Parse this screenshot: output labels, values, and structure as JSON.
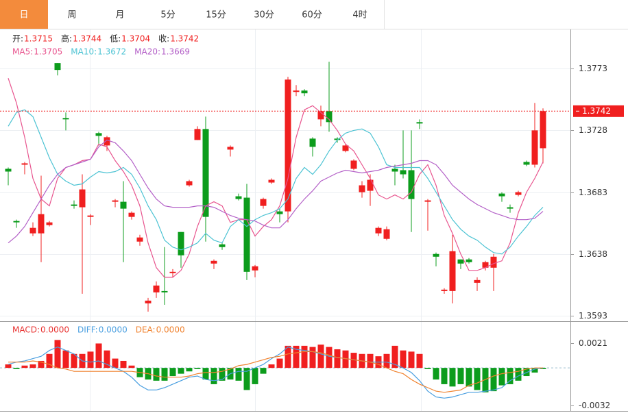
{
  "tabs": {
    "labels": [
      "日",
      "周",
      "月",
      "5分",
      "15分",
      "30分",
      "60分",
      "4时"
    ],
    "active": 0
  },
  "chart_data": [
    {
      "type": "candlestick",
      "up_color": "#f01f1f",
      "down_color": "#0c9c1c",
      "legend_value_color": "#f01f1f",
      "grid": true,
      "price_line": true,
      "ylim": [
        1.3591,
        1.3802
      ],
      "yticks": [
        1.3773,
        1.3728,
        1.3683,
        1.3638,
        1.3593
      ],
      "ohlc_legend": [
        {
          "label": "开:",
          "value": 1.3715
        },
        {
          "label": "高:",
          "value": 1.3744
        },
        {
          "label": "低:",
          "value": 1.3704
        },
        {
          "label": "收:",
          "value": 1.3742
        }
      ],
      "open": [
        1.37,
        1.3662,
        1.3703,
        1.3653,
        1.3653,
        1.3659,
        1.3777,
        1.3737,
        1.3674,
        1.3672,
        1.3665,
        1.3726,
        1.3717,
        1.3676,
        1.3676,
        1.3665,
        1.3647,
        1.3602,
        1.361,
        1.3611,
        1.3624,
        1.3654,
        1.3688,
        1.3721,
        1.3729,
        1.3631,
        1.3645,
        1.3714,
        1.368,
        1.3679,
        1.3626,
        1.3673,
        1.369,
        1.3669,
        1.3669,
        1.3756,
        1.3757,
        1.3722,
        1.3736,
        1.3742,
        1.3722,
        1.3713,
        1.37,
        1.3683,
        1.3684,
        1.3653,
        1.3649,
        1.37,
        1.3699,
        1.3699,
        1.3734,
        1.3676,
        1.3638,
        1.3611,
        1.3611,
        1.3634,
        1.3634,
        1.3617,
        1.3628,
        1.3628,
        1.3682,
        1.3672,
        1.3681,
        1.3705,
        1.3703,
        1.3715
      ],
      "high": [
        1.3701,
        1.3663,
        1.3705,
        1.3661,
        1.3695,
        1.3662,
        1.3777,
        1.3741,
        1.3677,
        1.3696,
        1.3667,
        1.3727,
        1.3724,
        1.3678,
        1.3691,
        1.3669,
        1.3652,
        1.3606,
        1.3618,
        1.3643,
        1.3627,
        1.3654,
        1.3692,
        1.3731,
        1.3738,
        1.3634,
        1.3646,
        1.3717,
        1.3682,
        1.3689,
        1.363,
        1.3679,
        1.3693,
        1.3671,
        1.3767,
        1.3761,
        1.3758,
        1.3723,
        1.3746,
        1.3778,
        1.3723,
        1.3718,
        1.3707,
        1.3691,
        1.3696,
        1.3658,
        1.3658,
        1.3703,
        1.3728,
        1.3728,
        1.3736,
        1.3678,
        1.3639,
        1.3613,
        1.3652,
        1.3634,
        1.3635,
        1.3621,
        1.3633,
        1.3638,
        1.3683,
        1.3674,
        1.3684,
        1.3706,
        1.3748,
        1.3744
      ],
      "low": [
        1.3688,
        1.3657,
        1.3696,
        1.3651,
        1.3632,
        1.3658,
        1.3768,
        1.3728,
        1.3671,
        1.3609,
        1.3659,
        1.3717,
        1.3713,
        1.3672,
        1.3632,
        1.3663,
        1.3644,
        1.3596,
        1.3606,
        1.3601,
        1.3621,
        1.3628,
        1.3687,
        1.3721,
        1.3647,
        1.3627,
        1.3641,
        1.3709,
        1.3677,
        1.3619,
        1.3621,
        1.3671,
        1.3689,
        1.3661,
        1.3661,
        1.3753,
        1.3753,
        1.3709,
        1.3731,
        1.3727,
        1.3719,
        1.3712,
        1.3699,
        1.3679,
        1.3673,
        1.3651,
        1.3648,
        1.3688,
        1.3693,
        1.3654,
        1.3729,
        1.3655,
        1.3629,
        1.3609,
        1.3602,
        1.3627,
        1.3631,
        1.3611,
        1.3626,
        1.3611,
        1.3676,
        1.3668,
        1.368,
        1.3702,
        1.3701,
        1.3704
      ],
      "close": [
        1.3698,
        1.3661,
        1.3704,
        1.3657,
        1.3667,
        1.3661,
        1.3772,
        1.3736,
        1.3673,
        1.3685,
        1.3666,
        1.3724,
        1.3723,
        1.3677,
        1.3671,
        1.3668,
        1.365,
        1.3604,
        1.3615,
        1.361,
        1.3625,
        1.3637,
        1.3691,
        1.3729,
        1.3665,
        1.3633,
        1.3643,
        1.3716,
        1.3678,
        1.3625,
        1.3629,
        1.3678,
        1.3692,
        1.3667,
        1.3765,
        1.3757,
        1.3755,
        1.3716,
        1.3742,
        1.3734,
        1.3721,
        1.3717,
        1.3706,
        1.3688,
        1.3692,
        1.3657,
        1.3656,
        1.3698,
        1.3696,
        1.3678,
        1.3733,
        1.3677,
        1.3636,
        1.3612,
        1.364,
        1.3631,
        1.3632,
        1.3619,
        1.3632,
        1.3636,
        1.368,
        1.3671,
        1.3683,
        1.3703,
        1.3728,
        1.3742
      ],
      "series": [
        {
          "name": "MA5:",
          "current": 1.3705,
          "color": "#e8548e",
          "values": [
            1.3766,
            1.3748,
            1.3723,
            1.3693,
            1.3678,
            1.3673,
            1.3693,
            1.3701,
            1.3703,
            1.3706,
            1.3707,
            1.3718,
            1.3716,
            1.3706,
            1.3698,
            1.3688,
            1.3673,
            1.3646,
            1.3628,
            1.3621,
            1.3621,
            1.3626,
            1.3638,
            1.3658,
            1.3673,
            1.3676,
            1.3673,
            1.3661,
            1.3663,
            1.3663,
            1.3651,
            1.3658,
            1.3663,
            1.3673,
            1.3693,
            1.3723,
            1.3743,
            1.3746,
            1.3741,
            1.3736,
            1.3728,
            1.3718,
            1.3713,
            1.3703,
            1.3693,
            1.3681,
            1.3678,
            1.3681,
            1.3678,
            1.3683,
            1.3696,
            1.3703,
            1.3688,
            1.3666,
            1.3653,
            1.3638,
            1.3626,
            1.3626,
            1.3628,
            1.3631,
            1.3633,
            1.3646,
            1.3668,
            1.3683,
            1.3693,
            1.3705
          ]
        },
        {
          "name": "MA10:",
          "current": 1.3672,
          "color": "#4cc3d3",
          "values": [
            1.3731,
            1.3741,
            1.3743,
            1.3738,
            1.3723,
            1.3708,
            1.3696,
            1.3691,
            1.3688,
            1.3689,
            1.3694,
            1.3698,
            1.3697,
            1.3698,
            1.3701,
            1.3696,
            1.3686,
            1.3673,
            1.3663,
            1.3648,
            1.3643,
            1.3641,
            1.3643,
            1.3646,
            1.3653,
            1.3648,
            1.3646,
            1.3658,
            1.3663,
            1.3658,
            1.3663,
            1.3666,
            1.3668,
            1.3671,
            1.3678,
            1.3693,
            1.3701,
            1.3696,
            1.3703,
            1.3713,
            1.3721,
            1.3726,
            1.3728,
            1.3729,
            1.3726,
            1.3716,
            1.3703,
            1.3701,
            1.3701,
            1.3701,
            1.3701,
            1.3693,
            1.3683,
            1.3673,
            1.3663,
            1.3656,
            1.3651,
            1.3648,
            1.3643,
            1.3639,
            1.3638,
            1.3643,
            1.3651,
            1.3658,
            1.3666,
            1.3672
          ]
        },
        {
          "name": "MA20:",
          "current": 1.3669,
          "color": "#b35fc7",
          "values": [
            1.3646,
            1.3651,
            1.3658,
            1.3668,
            1.3678,
            1.3688,
            1.3696,
            1.3701,
            1.3703,
            1.3705,
            1.3707,
            1.3716,
            1.3721,
            1.3719,
            1.3713,
            1.3706,
            1.3696,
            1.3686,
            1.3678,
            1.3673,
            1.3672,
            1.3672,
            1.3672,
            1.3673,
            1.3673,
            1.3672,
            1.3669,
            1.3666,
            1.3664,
            1.3663,
            1.3662,
            1.3659,
            1.3657,
            1.3657,
            1.3663,
            1.3671,
            1.3678,
            1.3684,
            1.3691,
            1.3694,
            1.3697,
            1.3699,
            1.3698,
            1.3697,
            1.3698,
            1.3699,
            1.3701,
            1.3702,
            1.3703,
            1.3704,
            1.3706,
            1.3706,
            1.3703,
            1.3696,
            1.3688,
            1.3683,
            1.3678,
            1.3674,
            1.3671,
            1.3668,
            1.3666,
            1.3664,
            1.3663,
            1.3663,
            1.3664,
            1.3669
          ]
        }
      ]
    },
    {
      "type": "bar",
      "up_color": "#f01f1f",
      "down_color": "#0c9c1c",
      "grid": false,
      "ylim": [
        -0.0037,
        0.0036
      ],
      "yticks": [
        0.0021,
        -0.0032
      ],
      "series": [
        {
          "name": "MACD:",
          "current": "0.0000",
          "color": "#e8312f",
          "type": "bar",
          "values": [
            0.0003,
            -0.0001,
            0.0002,
            0.0003,
            0.0006,
            0.0012,
            0.0024,
            0.0015,
            0.0012,
            0.0012,
            0.0014,
            0.0021,
            0.0015,
            0.0008,
            0.0006,
            0.0002,
            -0.0008,
            -0.001,
            -0.0011,
            -0.0011,
            -0.0007,
            -0.0005,
            -0.0003,
            -0.0001,
            -0.001,
            -0.0014,
            -0.0011,
            -0.001,
            -0.0011,
            -0.0019,
            -0.0014,
            -0.0005,
            0.0003,
            0.0008,
            0.0019,
            0.0019,
            0.0019,
            0.0018,
            0.002,
            0.0018,
            0.0016,
            0.0015,
            0.0013,
            0.0012,
            0.0012,
            0.001,
            0.0012,
            0.0019,
            0.0015,
            0.0014,
            0.0012,
            -0.0001,
            -0.001,
            -0.0014,
            -0.0016,
            -0.0014,
            -0.0016,
            -0.0019,
            -0.0021,
            -0.002,
            -0.0015,
            -0.0014,
            -0.0011,
            -0.0007,
            -0.0004,
            -0.0001
          ]
        },
        {
          "name": "DIFF:",
          "current": "0.0000",
          "color": "#4a9fe0",
          "type": "line",
          "values": [
            0.0003,
            0.0005,
            0.0006,
            0.0008,
            0.001,
            0.0015,
            0.0018,
            0.0015,
            0.0012,
            0.0006,
            0.0005,
            0.0006,
            0.0003,
            0,
            -0.0003,
            -0.0008,
            -0.0015,
            -0.0019,
            -0.0019,
            -0.0017,
            -0.0014,
            -0.0011,
            -0.0008,
            -0.0007,
            -0.001,
            -0.0011,
            -0.001,
            -0.0005,
            -0.0003,
            -0.0003,
            0,
            0.0003,
            0.0008,
            0.0012,
            0.0018,
            0.0016,
            0.0015,
            0.0014,
            0.0012,
            0.001,
            0.0009,
            0.0008,
            0.0007,
            0.0006,
            0.0005,
            0.0005,
            0.0005,
            0.0003,
            0,
            -0.0004,
            -0.0011,
            -0.002,
            -0.0025,
            -0.0026,
            -0.0025,
            -0.0023,
            -0.0021,
            -0.0021,
            -0.002,
            -0.0019,
            -0.0017,
            -0.0011,
            -0.0007,
            -0.0004,
            -0.0001,
            0
          ]
        },
        {
          "name": "DEA:",
          "current": "0.0000",
          "color": "#f0822e",
          "type": "line",
          "values": [
            0.0005,
            0.0005,
            0.0005,
            0.0006,
            0.0005,
            0.0003,
            0,
            -0.0001,
            -0.0003,
            -0.0003,
            -0.0003,
            -0.0003,
            -0.0003,
            -0.0003,
            -0.0003,
            -0.0003,
            -0.0004,
            -0.0005,
            -0.0007,
            -0.0008,
            -0.0008,
            -0.0008,
            -0.0007,
            -0.0005,
            -0.0004,
            -0.0004,
            -0.0003,
            -0.0001,
            0.0002,
            0.0003,
            0.0005,
            0.0007,
            0.0009,
            0.001,
            0.0012,
            0.0013,
            0.0014,
            0.0014,
            0.0013,
            0.0011,
            0.0009,
            0.0008,
            0.0007,
            0.0006,
            0.0005,
            0.0003,
            0,
            -0.0003,
            -0.0005,
            -0.001,
            -0.0014,
            -0.0017,
            -0.002,
            -0.0021,
            -0.002,
            -0.0019,
            -0.0015,
            -0.0013,
            -0.001,
            -0.0007,
            -0.0005,
            -0.0004,
            -0.0003,
            -0.0001,
            0,
            0
          ]
        }
      ]
    }
  ]
}
